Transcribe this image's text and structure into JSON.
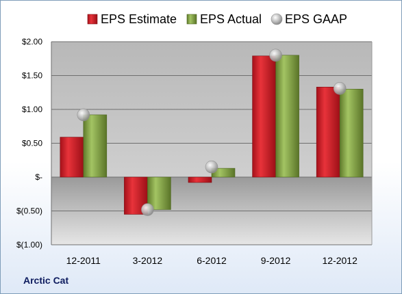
{
  "company": "Arctic Cat",
  "chart_data": {
    "type": "bar",
    "categories": [
      "12-2011",
      "3-2012",
      "6-2012",
      "9-2012",
      "12-2012"
    ],
    "series": [
      {
        "name": "EPS Estimate",
        "type": "bar",
        "values": [
          0.59,
          -0.55,
          -0.08,
          1.79,
          1.33
        ],
        "color": "#c0151b"
      },
      {
        "name": "EPS Actual",
        "type": "bar",
        "values": [
          0.92,
          -0.48,
          0.13,
          1.8,
          1.3
        ],
        "color": "#77933c"
      },
      {
        "name": "EPS GAAP",
        "type": "marker",
        "values": [
          0.92,
          -0.48,
          0.15,
          1.8,
          1.31
        ],
        "color": "#b4b4b4"
      }
    ],
    "yticks": [
      {
        "v": 2.0,
        "label": "$2.00"
      },
      {
        "v": 1.5,
        "label": "$1.50"
      },
      {
        "v": 1.0,
        "label": "$1.00"
      },
      {
        "v": 0.5,
        "label": "$0.50"
      },
      {
        "v": 0,
        "label": "$-"
      },
      {
        "v": -0.5,
        "label": "$(0.50)"
      },
      {
        "v": -1.0,
        "label": "$(1.00)"
      }
    ],
    "ylim": [
      -1.0,
      2.0
    ],
    "grid": true,
    "legend": "top"
  }
}
